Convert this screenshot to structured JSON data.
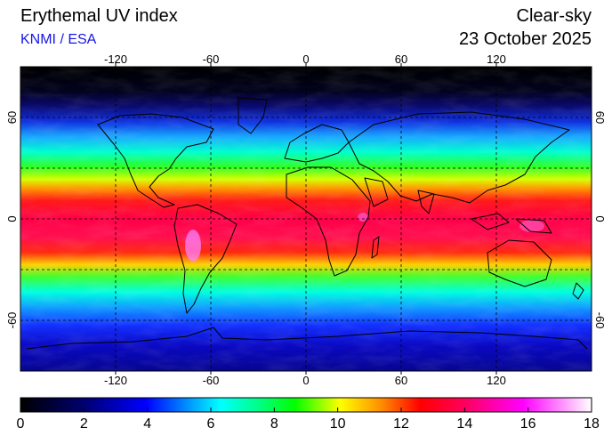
{
  "header": {
    "title": "Erythemal UV index",
    "source": "KNMI / ESA",
    "mode": "Clear-sky",
    "date": "23 October 2025"
  },
  "map": {
    "projection": "equirectangular",
    "lon_ticks": [
      -120,
      -60,
      0,
      60,
      120
    ],
    "lon_tick_labels": [
      "-120",
      "-60",
      "0",
      "60",
      "120"
    ],
    "lat_ticks": [
      60,
      0,
      -60
    ],
    "lat_tick_labels": [
      "60",
      "0",
      "-60"
    ],
    "gridlines": "dashed",
    "colormap": "uv-index"
  },
  "colorbar": {
    "min": 0,
    "max": 18,
    "tick_labels": [
      "0",
      "2",
      "4",
      "6",
      "8",
      "10",
      "12",
      "14",
      "16",
      "18"
    ],
    "colors": [
      "#000000",
      "#000060",
      "#0000ff",
      "#00a0ff",
      "#00ffff",
      "#00ff80",
      "#00ff00",
      "#ffff00",
      "#ff8000",
      "#ff0000",
      "#ff0060",
      "#ff00ff",
      "#ffffff"
    ]
  },
  "colors": {
    "source_text": "#1515e8",
    "frame": "#000000",
    "land_outline": "#000000"
  }
}
